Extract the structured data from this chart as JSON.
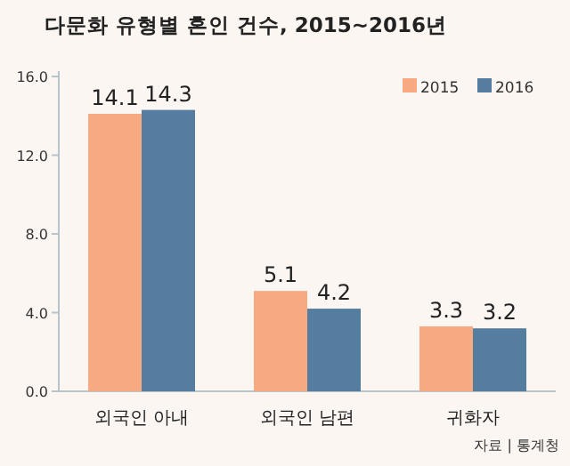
{
  "chart_data": {
    "type": "bar",
    "title": "다문화 유형별 혼인 건수, 2015~2016년",
    "categories": [
      "외국인 아내",
      "외국인 남편",
      "귀화자"
    ],
    "series": [
      {
        "name": "2015",
        "color": "#f7a982",
        "values": [
          14.1,
          5.1,
          3.3
        ]
      },
      {
        "name": "2016",
        "color": "#557d9f",
        "values": [
          14.3,
          4.2,
          3.2
        ]
      }
    ],
    "ylim": [
      0,
      16
    ],
    "yticks": [
      {
        "value": 0,
        "label": "0.0"
      },
      {
        "value": 4,
        "label": "4.0"
      },
      {
        "value": 8,
        "label": "8.0"
      },
      {
        "value": 12,
        "label": "12.0"
      },
      {
        "value": 16,
        "label": "16.0"
      }
    ],
    "data_labels": true,
    "legend": "top right",
    "grid": false,
    "annotations": [
      "자료 | 통계청"
    ]
  }
}
